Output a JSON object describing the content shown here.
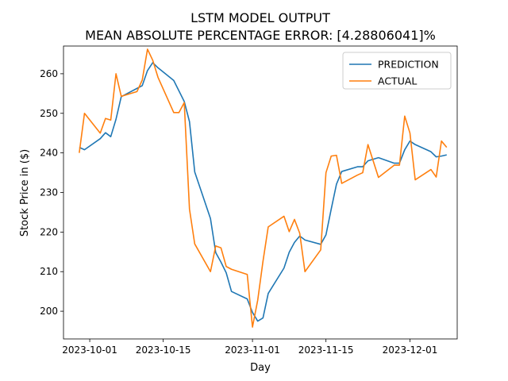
{
  "chart_data": {
    "type": "line",
    "title": "LSTM MODEL OUTPUT",
    "subtitle": "MEAN ABSOLUTE PERCENTAGE ERROR: [4.28806041]%",
    "xlabel": "Day",
    "ylabel": "Stock Price in ($)",
    "x_axis_type": "date",
    "xlim": [
      "2023-09-26",
      "2023-12-10"
    ],
    "ylim": [
      193,
      267
    ],
    "x_ticks": [
      "2023-10-01",
      "2023-10-15",
      "2023-11-01",
      "2023-11-15",
      "2023-12-01"
    ],
    "y_ticks": [
      200,
      210,
      220,
      230,
      240,
      250,
      260
    ],
    "legend_position": "top-right",
    "grid": false,
    "series": [
      {
        "name": "PREDICTION",
        "color": "#1f77b4",
        "points": [
          [
            "2023-09-29",
            241.4
          ],
          [
            "2023-09-30",
            240.8
          ],
          [
            "2023-10-03",
            243.6
          ],
          [
            "2023-10-04",
            245.1
          ],
          [
            "2023-10-05",
            244.1
          ],
          [
            "2023-10-06",
            248.5
          ],
          [
            "2023-10-07",
            254.2
          ],
          [
            "2023-10-10",
            256.3
          ],
          [
            "2023-10-11",
            257.0
          ],
          [
            "2023-10-12",
            260.8
          ],
          [
            "2023-10-13",
            262.8
          ],
          [
            "2023-10-14",
            261.5
          ],
          [
            "2023-10-17",
            258.3
          ],
          [
            "2023-10-19",
            253.0
          ],
          [
            "2023-10-20",
            247.9
          ],
          [
            "2023-10-21",
            235.2
          ],
          [
            "2023-10-24",
            223.4
          ],
          [
            "2023-10-25",
            214.8
          ],
          [
            "2023-10-26",
            212.4
          ],
          [
            "2023-10-27",
            209.7
          ],
          [
            "2023-10-28",
            205.0
          ],
          [
            "2023-10-31",
            203.1
          ],
          [
            "2023-11-01",
            199.7
          ],
          [
            "2023-11-02",
            197.5
          ],
          [
            "2023-11-03",
            198.3
          ],
          [
            "2023-11-04",
            204.5
          ],
          [
            "2023-11-07",
            210.9
          ],
          [
            "2023-11-08",
            214.9
          ],
          [
            "2023-11-09",
            217.4
          ],
          [
            "2023-11-10",
            219.0
          ],
          [
            "2023-11-11",
            218.0
          ],
          [
            "2023-11-14",
            216.9
          ],
          [
            "2023-11-15",
            219.3
          ],
          [
            "2023-11-16",
            225.8
          ],
          [
            "2023-11-17",
            232.1
          ],
          [
            "2023-11-18",
            235.3
          ],
          [
            "2023-11-21",
            236.5
          ],
          [
            "2023-11-22",
            236.5
          ],
          [
            "2023-11-23",
            238.0
          ],
          [
            "2023-11-25",
            238.8
          ],
          [
            "2023-11-28",
            237.4
          ],
          [
            "2023-11-29",
            237.4
          ],
          [
            "2023-11-30",
            240.8
          ],
          [
            "2023-12-01",
            243.0
          ],
          [
            "2023-12-02",
            242.1
          ],
          [
            "2023-12-05",
            240.3
          ],
          [
            "2023-12-06",
            239.0
          ],
          [
            "2023-12-07",
            239.2
          ],
          [
            "2023-12-08",
            239.5
          ]
        ]
      },
      {
        "name": "ACTUAL",
        "color": "#ff7f0e",
        "points": [
          [
            "2023-09-29",
            240.0
          ],
          [
            "2023-09-30",
            250.0
          ],
          [
            "2023-10-03",
            245.0
          ],
          [
            "2023-10-04",
            248.7
          ],
          [
            "2023-10-05",
            248.3
          ],
          [
            "2023-10-06",
            260.0
          ],
          [
            "2023-10-07",
            254.3
          ],
          [
            "2023-10-10",
            255.5
          ],
          [
            "2023-10-11",
            258.4
          ],
          [
            "2023-10-12",
            266.2
          ],
          [
            "2023-10-13",
            263.4
          ],
          [
            "2023-10-14",
            259.1
          ],
          [
            "2023-10-17",
            250.2
          ],
          [
            "2023-10-18",
            250.2
          ],
          [
            "2023-10-19",
            252.7
          ],
          [
            "2023-10-20",
            225.8
          ],
          [
            "2023-10-21",
            217.0
          ],
          [
            "2023-10-24",
            210.0
          ],
          [
            "2023-10-25",
            216.5
          ],
          [
            "2023-10-26",
            216.0
          ],
          [
            "2023-10-27",
            211.3
          ],
          [
            "2023-10-28",
            210.6
          ],
          [
            "2023-10-31",
            209.3
          ],
          [
            "2023-11-01",
            196.0
          ],
          [
            "2023-11-02",
            202.8
          ],
          [
            "2023-11-03",
            212.6
          ],
          [
            "2023-11-04",
            221.3
          ],
          [
            "2023-11-07",
            224.0
          ],
          [
            "2023-11-08",
            220.1
          ],
          [
            "2023-11-09",
            223.2
          ],
          [
            "2023-11-10",
            219.7
          ],
          [
            "2023-11-11",
            210.0
          ],
          [
            "2023-11-14",
            215.5
          ],
          [
            "2023-11-15",
            235.0
          ],
          [
            "2023-11-16",
            239.2
          ],
          [
            "2023-11-17",
            239.4
          ],
          [
            "2023-11-18",
            232.3
          ],
          [
            "2023-11-21",
            234.4
          ],
          [
            "2023-11-22",
            235.0
          ],
          [
            "2023-11-23",
            242.1
          ],
          [
            "2023-11-25",
            233.8
          ],
          [
            "2023-11-28",
            236.9
          ],
          [
            "2023-11-29",
            236.9
          ],
          [
            "2023-11-30",
            249.3
          ],
          [
            "2023-12-01",
            245.0
          ],
          [
            "2023-12-02",
            233.2
          ],
          [
            "2023-12-05",
            235.8
          ],
          [
            "2023-12-06",
            233.9
          ],
          [
            "2023-12-07",
            243.0
          ],
          [
            "2023-12-08",
            241.4
          ]
        ]
      }
    ]
  }
}
